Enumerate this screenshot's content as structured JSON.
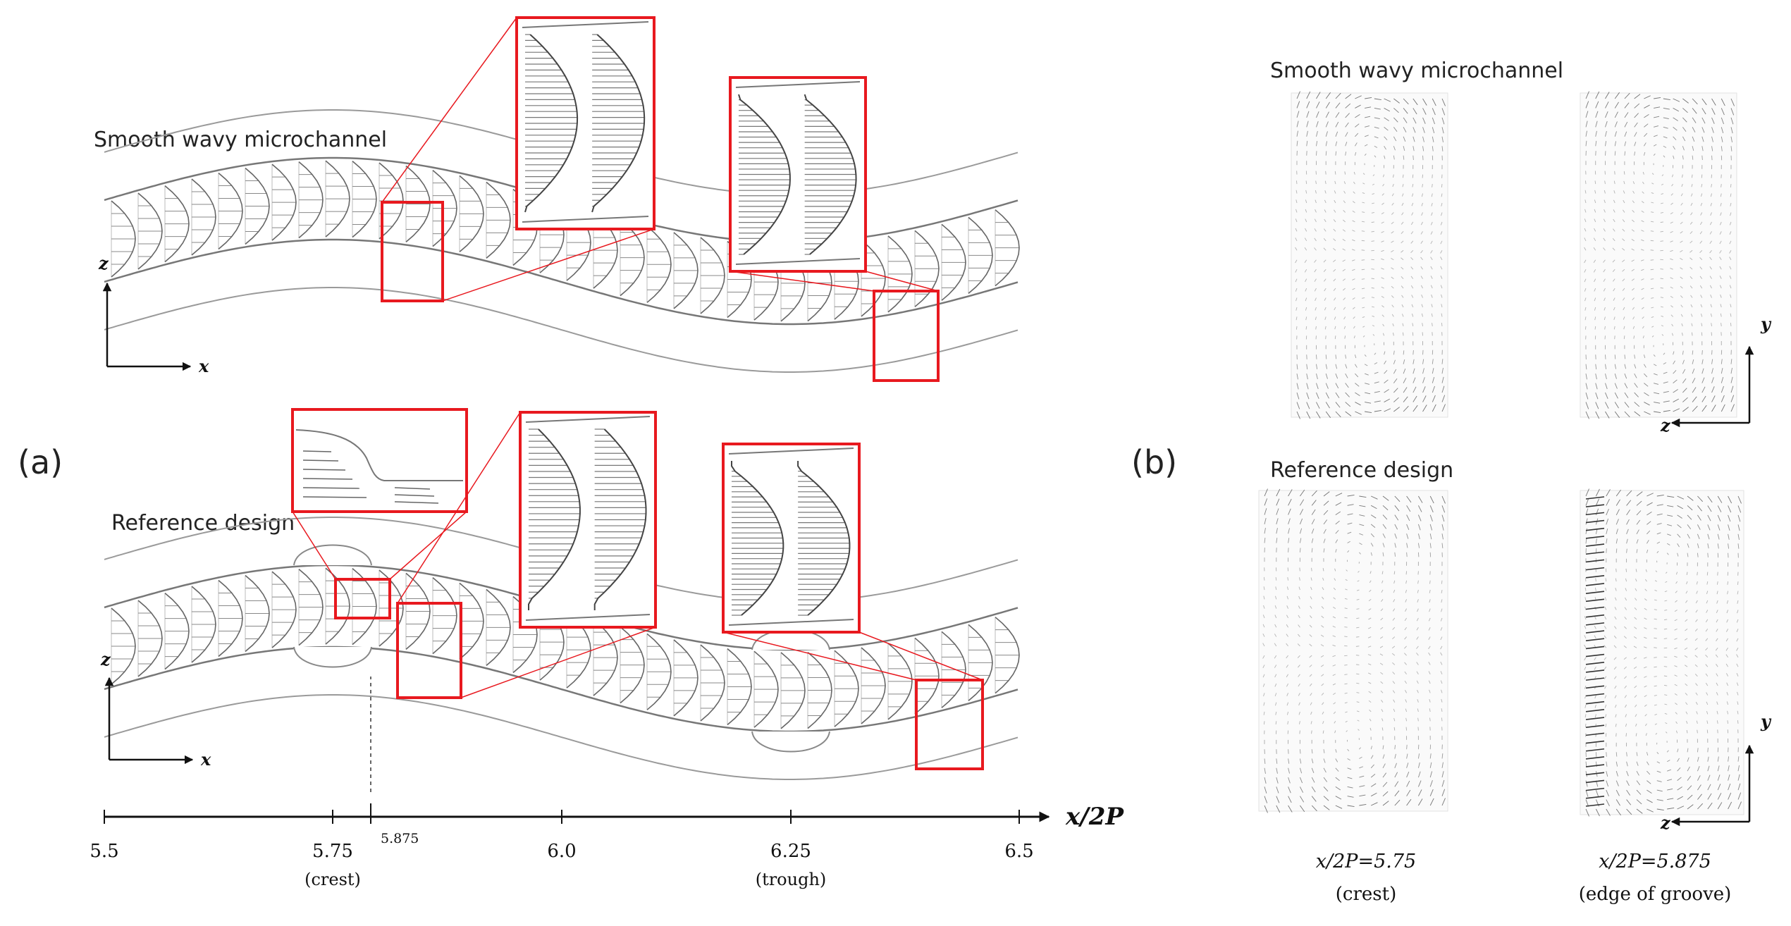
{
  "panel_a": {
    "label": "(a)",
    "smooth_title": "Smooth wavy microchannel",
    "reference_title": "Reference design",
    "axis_z": "z",
    "axis_x": "x",
    "xaxis_label": "x/2P",
    "ticks": [
      "5.5",
      "5.75",
      "5.875",
      "6.0",
      "6.25",
      "6.5"
    ],
    "crest_label": "(crest)",
    "trough_label": "(trough)"
  },
  "panel_b": {
    "label": "(b)",
    "smooth_title": "Smooth wavy microchannel",
    "reference_title": "Reference design",
    "axis_y": "y",
    "axis_z": "z",
    "caption_left_value": "x/2P=5.75",
    "caption_left_note": "(crest)",
    "caption_right_value": "x/2P=5.875",
    "caption_right_note": "(edge of groove)"
  },
  "colors": {
    "highlight": "#e8191f",
    "line": "#9a9a9a",
    "arrow": "#555555",
    "ink": "#111111"
  }
}
